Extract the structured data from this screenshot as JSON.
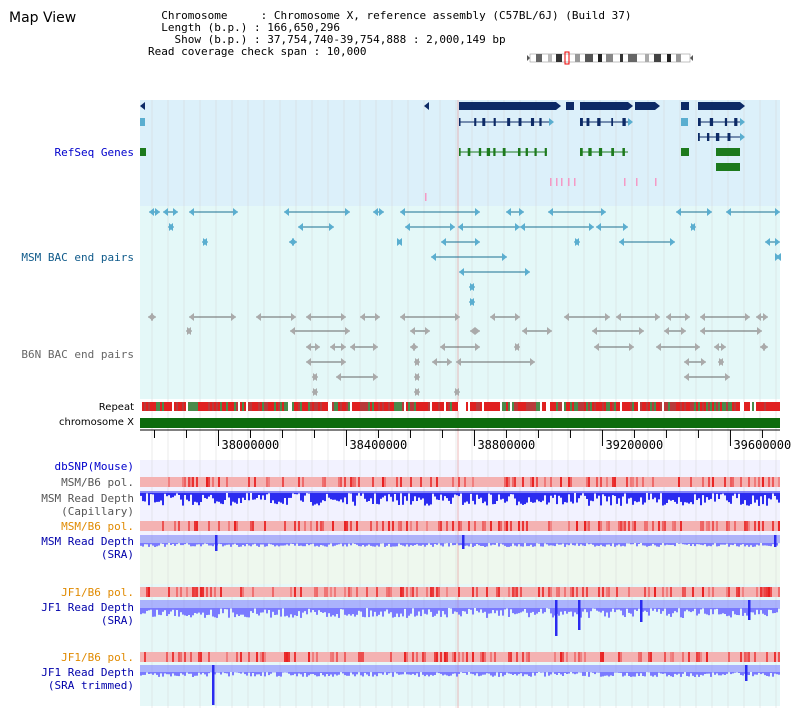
{
  "page_title": "Map View",
  "info_lines": [
    "  Chromosome     : Chromosome X, reference assembly (C57BL/6J) (Build 37)",
    "  Length (b.p.) : 166,650,296",
    "    Show (b.p.) : 37,754,740-39,754,888 : 2,000,149 bp",
    "Read coverage check span : 10,000"
  ],
  "tracks": {
    "refseq": "RefSeq Genes",
    "msm_bac": "MSM BAC end pairs",
    "b6n_bac": "B6N BAC end pairs",
    "repeat": "Repeat",
    "chromosome": "chromosome X",
    "dbsnp": "dbSNP(Mouse)",
    "msm_b6_pol_1": "MSM/B6 pol.",
    "msm_depth_cap_1": "MSM Read Depth",
    "msm_depth_cap_2": "(Capillary)",
    "msm_b6_pol_2": "MSM/B6 pol.",
    "msm_depth_sra_1": "MSM Read Depth",
    "msm_depth_sra_2": "(SRA)",
    "jf1_b6_pol_1": "JF1/B6 pol.",
    "jf1_depth_sra_1": "JF1 Read Depth",
    "jf1_depth_sra_2": "(SRA)",
    "jf1_b6_pol_2": "JF1/B6 pol.",
    "jf1_depth_trim_1": "JF1 Read Depth",
    "jf1_depth_trim_2": "(SRA trimmed)"
  },
  "axis": {
    "range": [
      37754740,
      39754888
    ],
    "tick_labels": [
      "38000000",
      "38400000",
      "38800000",
      "39200000",
      "39600000"
    ]
  },
  "colors": {
    "refseq_label": "#0000cc",
    "msm_bac_label": "#0f5a8a",
    "b6n_bac_label": "#666666",
    "pol_msm_label": "#555555",
    "pol_orange_label": "#e08a00",
    "depth_label": "#0000aa",
    "refseq_bg": "#dcf0fa",
    "bac_bg": "#e4f8f8",
    "gene_navy": "#0d2a66",
    "gene_green": "#1d7a1d",
    "chromosome_bar": "#0d6b0d",
    "depth_blue": "#2b2bf0",
    "depth_light": "#7a7aff",
    "pol_pink": "#f4b2b2",
    "pol_red": "#e82020"
  }
}
